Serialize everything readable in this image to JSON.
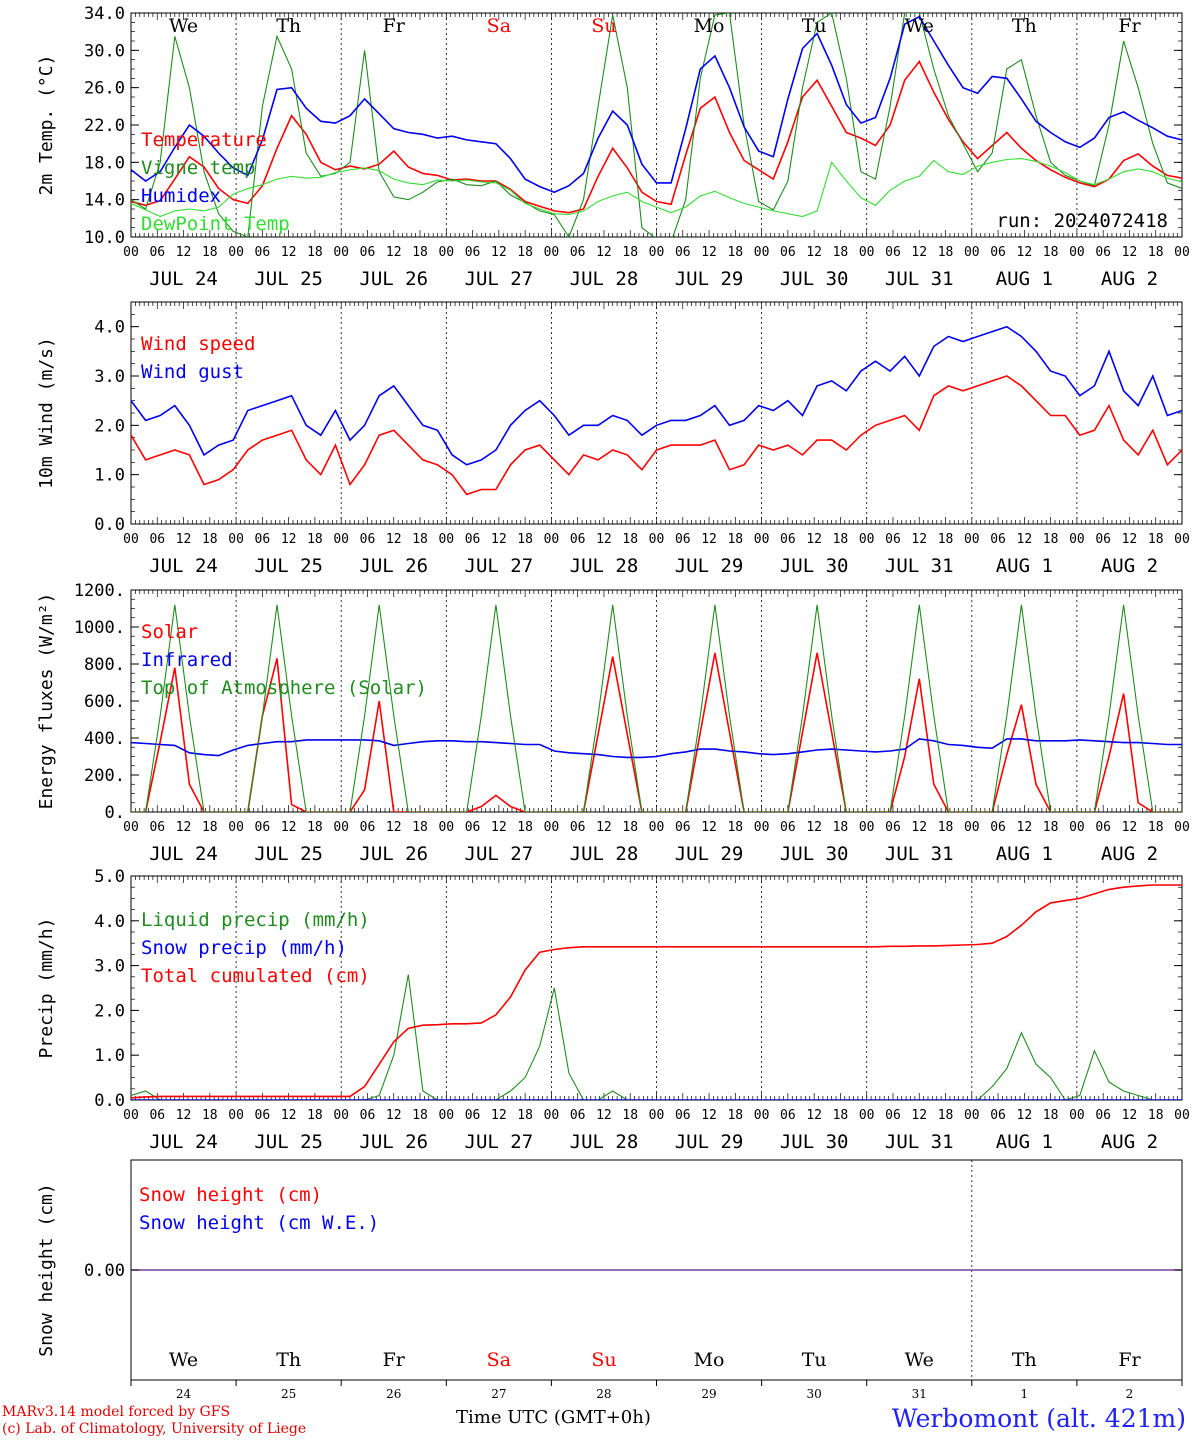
{
  "colors": {
    "red": "#ff0000",
    "green": "#1f8c1f",
    "blue": "#0000ee",
    "lightgreen": "#33dd33",
    "purple": "#7f3f9f",
    "daysun": "#ff0000"
  },
  "days": [
    {
      "abbr": "We",
      "date": "JUL 24",
      "num": "24",
      "weekend": false
    },
    {
      "abbr": "Th",
      "date": "JUL 25",
      "num": "25",
      "weekend": false
    },
    {
      "abbr": "Fr",
      "date": "JUL 26",
      "num": "26",
      "weekend": false
    },
    {
      "abbr": "Sa",
      "date": "JUL 27",
      "num": "27",
      "weekend": true
    },
    {
      "abbr": "Su",
      "date": "JUL 28",
      "num": "28",
      "weekend": true
    },
    {
      "abbr": "Mo",
      "date": "JUL 29",
      "num": "29",
      "weekend": false
    },
    {
      "abbr": "Tu",
      "date": "JUL 30",
      "num": "30",
      "weekend": false
    },
    {
      "abbr": "We",
      "date": "JUL 31",
      "num": "31",
      "weekend": false
    },
    {
      "abbr": "Th",
      "date": "AUG  1",
      "num": "1",
      "weekend": false
    },
    {
      "abbr": "Fr",
      "date": "AUG  2",
      "num": "2",
      "weekend": false
    }
  ],
  "hour_ticks": [
    "00",
    "06",
    "12",
    "18"
  ],
  "last_tick": "00",
  "chart_data": [
    {
      "type": "line",
      "ylabel": "2m Temp. (°C)",
      "ylim": [
        10,
        34
      ],
      "yticks": [
        "10.0",
        "14.0",
        "18.0",
        "22.0",
        "26.0",
        "30.0",
        "34.0"
      ],
      "run_label": "run: 2024072418",
      "x_unit": "hours from 2024-07-24 00 UTC (10 days, 3-hourly)",
      "series": [
        {
          "name": "Temperature",
          "color": "red",
          "values": [
            13.8,
            13.4,
            13.9,
            16.2,
            18.6,
            17.5,
            15.2,
            14.0,
            13.6,
            15.5,
            19.5,
            23.0,
            21.0,
            18.0,
            17.2,
            17.6,
            17.3,
            17.8,
            19.2,
            17.5,
            16.8,
            16.6,
            16.1,
            16.2,
            16.0,
            16.0,
            15.1,
            13.8,
            13.3,
            12.8,
            12.6,
            13.0,
            16.5,
            19.5,
            17.4,
            14.8,
            13.8,
            13.5,
            18.8,
            23.8,
            25.0,
            21.2,
            18.2,
            17.2,
            16.2,
            20.2,
            25.0,
            26.8,
            24.0,
            21.2,
            20.6,
            19.8,
            22.0,
            26.8,
            28.8,
            25.5,
            22.6,
            20.2,
            18.4,
            19.8,
            21.2,
            19.5,
            18.2,
            17.2,
            16.4,
            15.8,
            15.4,
            16.2,
            18.2,
            18.9,
            17.6,
            16.6,
            16.3
          ]
        },
        {
          "name": "Vigne temp",
          "color": "green",
          "values": [
            14.0,
            13.0,
            18.0,
            31.5,
            26.0,
            17.0,
            12.5,
            10.6,
            10.0,
            24.0,
            31.5,
            28.0,
            19.0,
            16.5,
            16.8,
            18.0,
            30.0,
            17.0,
            14.3,
            14.0,
            14.8,
            15.9,
            16.2,
            15.6,
            15.5,
            16.0,
            14.5,
            13.7,
            12.8,
            12.4,
            10.0,
            14.0,
            24.0,
            33.8,
            26.0,
            11.0,
            9.8,
            9.5,
            14.0,
            27.0,
            33.8,
            34.0,
            22.0,
            13.8,
            12.9,
            16.0,
            26.0,
            33.0,
            34.0,
            27.0,
            17.0,
            16.2,
            24.0,
            34.0,
            34.0,
            28.0,
            23.0,
            20.0,
            17.0,
            19.0,
            28.0,
            29.0,
            23.0,
            18.0,
            16.6,
            16.0,
            15.5,
            22.0,
            31.0,
            26.0,
            20.0,
            15.8,
            15.2
          ]
        },
        {
          "name": "Humidex",
          "color": "blue",
          "values": [
            17.2,
            16.0,
            17.0,
            19.6,
            22.0,
            20.8,
            19.0,
            17.4,
            16.6,
            20.4,
            25.8,
            26.0,
            23.8,
            22.4,
            22.2,
            23.0,
            24.8,
            23.2,
            21.6,
            21.2,
            21.0,
            20.6,
            20.8,
            20.4,
            20.2,
            20.0,
            18.4,
            16.2,
            15.4,
            14.8,
            15.5,
            16.8,
            20.6,
            23.5,
            22.0,
            17.8,
            15.8,
            15.8,
            21.6,
            28.0,
            29.4,
            26.0,
            21.8,
            19.2,
            18.6,
            24.8,
            30.2,
            31.8,
            28.4,
            24.2,
            22.2,
            22.8,
            27.0,
            32.8,
            33.6,
            31.0,
            28.4,
            26.0,
            25.4,
            27.2,
            27.0,
            24.8,
            22.4,
            21.2,
            20.2,
            19.6,
            20.6,
            22.8,
            23.4,
            22.5,
            21.7,
            20.8,
            20.4
          ]
        },
        {
          "name": "DewPoint Temp",
          "color": "lightgreen",
          "values": [
            13.6,
            12.9,
            12.2,
            12.8,
            13.0,
            12.8,
            13.2,
            14.6,
            15.2,
            15.6,
            16.2,
            16.5,
            16.3,
            16.4,
            16.9,
            17.2,
            17.4,
            17.1,
            16.2,
            15.8,
            15.6,
            16.1,
            16.0,
            16.1,
            15.9,
            15.8,
            15.0,
            13.6,
            13.0,
            12.5,
            12.4,
            12.8,
            13.8,
            14.4,
            14.8,
            13.8,
            13.2,
            12.6,
            13.2,
            14.4,
            14.9,
            14.2,
            13.6,
            13.2,
            12.8,
            12.5,
            12.2,
            12.8,
            18.0,
            16.0,
            14.2,
            13.4,
            15.0,
            16.0,
            16.5,
            18.2,
            17.0,
            16.7,
            17.6,
            18.0,
            18.3,
            18.4,
            18.1,
            17.6,
            16.9,
            16.0,
            15.6,
            16.2,
            17.0,
            17.3,
            17.0,
            16.3,
            15.9
          ]
        }
      ]
    },
    {
      "type": "line",
      "ylabel": "10m Wind (m/s)",
      "ylim": [
        0,
        4.5
      ],
      "yticks": [
        "0.0",
        "1.0",
        "2.0",
        "3.0",
        "4.0"
      ],
      "series": [
        {
          "name": "Wind speed",
          "color": "red",
          "values": [
            1.8,
            1.3,
            1.4,
            1.5,
            1.4,
            0.8,
            0.9,
            1.1,
            1.5,
            1.7,
            1.8,
            1.9,
            1.3,
            1.0,
            1.6,
            0.8,
            1.2,
            1.8,
            1.9,
            1.6,
            1.3,
            1.2,
            1.0,
            0.6,
            0.7,
            0.7,
            1.2,
            1.5,
            1.6,
            1.3,
            1.0,
            1.4,
            1.3,
            1.5,
            1.4,
            1.1,
            1.5,
            1.6,
            1.6,
            1.6,
            1.7,
            1.1,
            1.2,
            1.6,
            1.5,
            1.6,
            1.4,
            1.7,
            1.7,
            1.5,
            1.8,
            2.0,
            2.1,
            2.2,
            1.9,
            2.6,
            2.8,
            2.7,
            2.8,
            2.9,
            3.0,
            2.8,
            2.5,
            2.2,
            2.2,
            1.8,
            1.9,
            2.4,
            1.7,
            1.4,
            1.9,
            1.2,
            1.5
          ]
        },
        {
          "name": "Wind gust",
          "color": "blue",
          "values": [
            2.5,
            2.1,
            2.2,
            2.4,
            2.0,
            1.4,
            1.6,
            1.7,
            2.3,
            2.4,
            2.5,
            2.6,
            2.0,
            1.8,
            2.3,
            1.7,
            2.0,
            2.6,
            2.8,
            2.4,
            2.0,
            1.9,
            1.4,
            1.2,
            1.3,
            1.5,
            2.0,
            2.3,
            2.5,
            2.2,
            1.8,
            2.0,
            2.0,
            2.2,
            2.1,
            1.8,
            2.0,
            2.1,
            2.1,
            2.2,
            2.4,
            2.0,
            2.1,
            2.4,
            2.3,
            2.5,
            2.2,
            2.8,
            2.9,
            2.7,
            3.1,
            3.3,
            3.1,
            3.4,
            3.0,
            3.6,
            3.8,
            3.7,
            3.8,
            3.9,
            4.0,
            3.8,
            3.5,
            3.1,
            3.0,
            2.6,
            2.8,
            3.5,
            2.7,
            2.4,
            3.0,
            2.2,
            2.3
          ]
        }
      ]
    },
    {
      "type": "line",
      "ylabel": "Energy fluxes (W/m²)",
      "ylim": [
        0,
        1200
      ],
      "yticks": [
        "0.",
        "200.",
        "400.",
        "600.",
        "800.",
        "1000.",
        "1200."
      ],
      "series": [
        {
          "name": "Solar",
          "color": "red",
          "values": [
            0,
            0,
            380,
            780,
            150,
            0,
            0,
            0,
            0,
            520,
            830,
            40,
            0,
            0,
            0,
            0,
            120,
            600,
            0,
            0,
            0,
            0,
            0,
            0,
            30,
            90,
            30,
            0,
            0,
            0,
            0,
            0,
            420,
            840,
            420,
            0,
            0,
            0,
            0,
            430,
            860,
            430,
            0,
            0,
            0,
            0,
            430,
            860,
            430,
            0,
            0,
            0,
            0,
            300,
            720,
            150,
            0,
            0,
            0,
            0,
            310,
            580,
            150,
            0,
            0,
            0,
            0,
            300,
            640,
            50,
            0,
            0,
            0
          ]
        },
        {
          "name": "Infrared",
          "color": "blue",
          "values": [
            375,
            370,
            365,
            360,
            320,
            310,
            305,
            335,
            360,
            370,
            380,
            380,
            390,
            390,
            390,
            390,
            390,
            385,
            360,
            370,
            380,
            385,
            385,
            380,
            380,
            375,
            370,
            365,
            365,
            330,
            320,
            315,
            310,
            300,
            295,
            295,
            300,
            315,
            325,
            340,
            340,
            330,
            325,
            315,
            310,
            315,
            325,
            335,
            340,
            335,
            330,
            325,
            330,
            340,
            395,
            385,
            365,
            360,
            350,
            345,
            395,
            395,
            385,
            385,
            385,
            390,
            385,
            380,
            375,
            375,
            370,
            365,
            365
          ]
        },
        {
          "name": "Top of Atmosphere (Solar)",
          "color": "green",
          "values": [
            0,
            0,
            520,
            1120,
            520,
            0,
            0,
            0,
            0,
            520,
            1120,
            520,
            0,
            0,
            0,
            0,
            520,
            1120,
            520,
            0,
            0,
            0,
            0,
            0,
            520,
            1120,
            520,
            0,
            0,
            0,
            0,
            0,
            520,
            1120,
            520,
            0,
            0,
            0,
            0,
            520,
            1120,
            520,
            0,
            0,
            0,
            0,
            520,
            1120,
            520,
            0,
            0,
            0,
            0,
            520,
            1120,
            520,
            0,
            0,
            0,
            0,
            520,
            1120,
            520,
            0,
            0,
            0,
            0,
            520,
            1120,
            520,
            0,
            0,
            0
          ]
        }
      ]
    },
    {
      "type": "line",
      "ylabel": "Precip (mm/h)",
      "ylim": [
        0,
        5
      ],
      "yticks": [
        "0.0",
        "1.0",
        "2.0",
        "3.0",
        "4.0",
        "5.0"
      ],
      "series": [
        {
          "name": "Liquid precip (mm/h)",
          "color": "green",
          "values": [
            0.1,
            0.2,
            0,
            0,
            0,
            0,
            0,
            0,
            0,
            0,
            0,
            0,
            0,
            0,
            0,
            0,
            0,
            0.1,
            1.0,
            2.8,
            0.2,
            0,
            0,
            0,
            0,
            0,
            0.2,
            0.5,
            1.2,
            2.5,
            0.6,
            0,
            0,
            0.2,
            0,
            0,
            0,
            0,
            0,
            0,
            0,
            0,
            0,
            0,
            0,
            0,
            0,
            0,
            0,
            0,
            0,
            0,
            0,
            0,
            0,
            0,
            0,
            0,
            0,
            0.3,
            0.7,
            1.5,
            0.8,
            0.5,
            0,
            0.1,
            1.1,
            0.4,
            0.2,
            0.1,
            0,
            0,
            0
          ]
        },
        {
          "name": "Snow precip (mm/h)",
          "color": "blue",
          "values": [
            0,
            0,
            0,
            0,
            0,
            0,
            0,
            0,
            0,
            0,
            0,
            0,
            0,
            0,
            0,
            0,
            0,
            0,
            0,
            0,
            0,
            0,
            0,
            0,
            0,
            0,
            0,
            0,
            0,
            0,
            0,
            0,
            0,
            0,
            0,
            0,
            0,
            0,
            0,
            0,
            0,
            0,
            0,
            0,
            0,
            0,
            0,
            0,
            0,
            0,
            0,
            0,
            0,
            0,
            0,
            0,
            0,
            0,
            0,
            0,
            0,
            0,
            0,
            0,
            0,
            0,
            0,
            0,
            0,
            0,
            0,
            0,
            0
          ]
        },
        {
          "name": "Total cumulated (cm)",
          "color": "red",
          "values": [
            0.05,
            0.07,
            0.08,
            0.08,
            0.08,
            0.08,
            0.08,
            0.08,
            0.08,
            0.08,
            0.08,
            0.08,
            0.08,
            0.08,
            0.08,
            0.08,
            0.3,
            0.8,
            1.3,
            1.6,
            1.67,
            1.68,
            1.7,
            1.7,
            1.72,
            1.9,
            2.3,
            2.9,
            3.3,
            3.36,
            3.4,
            3.42,
            3.42,
            3.42,
            3.42,
            3.42,
            3.42,
            3.42,
            3.42,
            3.42,
            3.42,
            3.42,
            3.42,
            3.42,
            3.42,
            3.42,
            3.42,
            3.42,
            3.42,
            3.42,
            3.42,
            3.42,
            3.43,
            3.43,
            3.44,
            3.44,
            3.45,
            3.46,
            3.47,
            3.5,
            3.65,
            3.9,
            4.2,
            4.4,
            4.45,
            4.5,
            4.6,
            4.7,
            4.75,
            4.78,
            4.8,
            4.8,
            4.8
          ]
        }
      ]
    },
    {
      "type": "line",
      "ylabel": "Snow height (cm)",
      "yticks": [
        "0.00"
      ],
      "series": [
        {
          "name": "Snow height (cm)",
          "color": "red",
          "values": [
            0,
            0
          ]
        },
        {
          "name": "Snow height (cm W.E.)",
          "color": "blue",
          "values": [
            0,
            0
          ]
        }
      ]
    }
  ],
  "xlabel": "Time UTC (GMT+0h)",
  "station": "Werbomont (alt. 421m)",
  "footer_line1": "MARv3.14 model forced by GFS",
  "footer_line2": "(c) Lab. of Climatology, University of Liege"
}
